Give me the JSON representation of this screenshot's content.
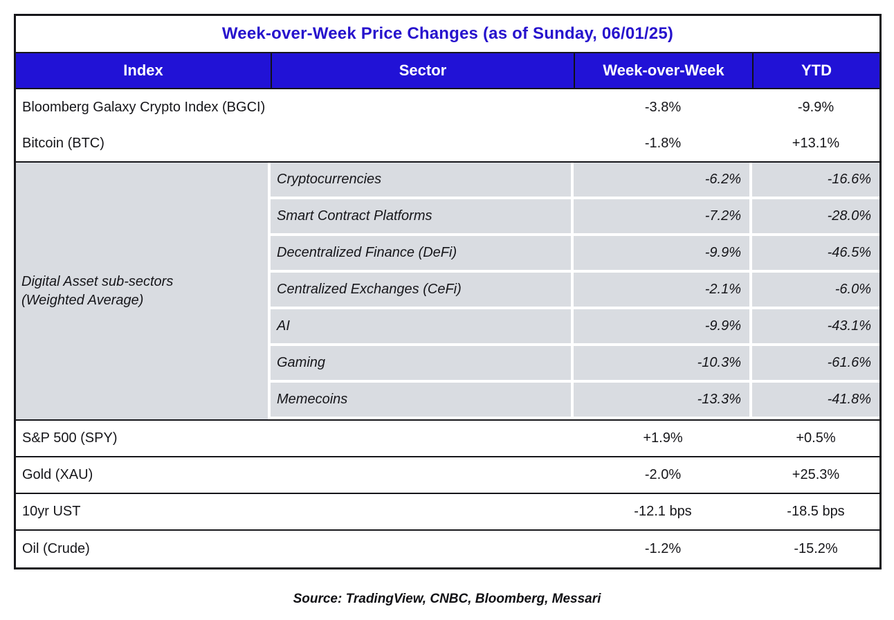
{
  "title": "Week-over-Week Price Changes (as of Sunday, 06/01/25)",
  "columns": {
    "index": "Index",
    "sector": "Sector",
    "wow": "Week-over-Week",
    "ytd": "YTD"
  },
  "rows_top": [
    {
      "index": "Bloomberg Galaxy Crypto Index (BGCI)",
      "wow": "-3.8%",
      "ytd": "-9.9%"
    },
    {
      "index": "Bitcoin (BTC)",
      "wow": "-1.8%",
      "ytd": "+13.1%"
    }
  ],
  "subsector_group": {
    "label_line1": "Digital Asset sub-sectors",
    "label_line2": "(Weighted Average)",
    "rows": [
      {
        "sector": "Cryptocurrencies",
        "wow": "-6.2%",
        "ytd": "-16.6%"
      },
      {
        "sector": "Smart Contract Platforms",
        "wow": "-7.2%",
        "ytd": "-28.0%"
      },
      {
        "sector": "Decentralized Finance (DeFi)",
        "wow": "-9.9%",
        "ytd": "-46.5%"
      },
      {
        "sector": "Centralized Exchanges (CeFi)",
        "wow": "-2.1%",
        "ytd": "-6.0%"
      },
      {
        "sector": "AI",
        "wow": "-9.9%",
        "ytd": "-43.1%"
      },
      {
        "sector": "Gaming",
        "wow": "-10.3%",
        "ytd": "-61.6%"
      },
      {
        "sector": "Memecoins",
        "wow": "-13.3%",
        "ytd": "-41.8%"
      }
    ]
  },
  "rows_bottom": [
    {
      "index": "S&P 500 (SPY)",
      "wow": "+1.9%",
      "ytd": "+0.5%"
    },
    {
      "index": "Gold (XAU)",
      "wow": "-2.0%",
      "ytd": "+25.3%"
    },
    {
      "index": "10yr UST",
      "wow": "-12.1 bps",
      "ytd": "-18.5 bps"
    },
    {
      "index": "Oil (Crude)",
      "wow": "-1.2%",
      "ytd": "-15.2%"
    }
  ],
  "source": "Source: TradingView, CNBC, Bloomberg, Messari",
  "colors": {
    "header_bg": "#2112d6",
    "title_text": "#2713cd",
    "subsector_bg": "#d9dce1",
    "border": "#16161a",
    "header_text": "#ffffff"
  },
  "chart_data": {
    "type": "table",
    "title": "Week-over-Week Price Changes (as of Sunday, 06/01/25)",
    "columns": [
      "Index",
      "Sector",
      "Week-over-Week",
      "YTD"
    ],
    "rows": [
      [
        "Bloomberg Galaxy Crypto Index (BGCI)",
        "",
        "-3.8%",
        "-9.9%"
      ],
      [
        "Bitcoin (BTC)",
        "",
        "-1.8%",
        "+13.1%"
      ],
      [
        "Digital Asset sub-sectors (Weighted Average)",
        "Cryptocurrencies",
        "-6.2%",
        "-16.6%"
      ],
      [
        "Digital Asset sub-sectors (Weighted Average)",
        "Smart Contract Platforms",
        "-7.2%",
        "-28.0%"
      ],
      [
        "Digital Asset sub-sectors (Weighted Average)",
        "Decentralized Finance (DeFi)",
        "-9.9%",
        "-46.5%"
      ],
      [
        "Digital Asset sub-sectors (Weighted Average)",
        "Centralized Exchanges (CeFi)",
        "-2.1%",
        "-6.0%"
      ],
      [
        "Digital Asset sub-sectors (Weighted Average)",
        "AI",
        "-9.9%",
        "-43.1%"
      ],
      [
        "Digital Asset sub-sectors (Weighted Average)",
        "Gaming",
        "-10.3%",
        "-61.6%"
      ],
      [
        "Digital Asset sub-sectors (Weighted Average)",
        "Memecoins",
        "-13.3%",
        "-41.8%"
      ],
      [
        "S&P 500 (SPY)",
        "",
        "+1.9%",
        "+0.5%"
      ],
      [
        "Gold (XAU)",
        "",
        "-2.0%",
        "+25.3%"
      ],
      [
        "10yr UST",
        "",
        "-12.1 bps",
        "-18.5 bps"
      ],
      [
        "Oil (Crude)",
        "",
        "-1.2%",
        "-15.2%"
      ]
    ],
    "source": "Source: TradingView, CNBC, Bloomberg, Messari"
  }
}
